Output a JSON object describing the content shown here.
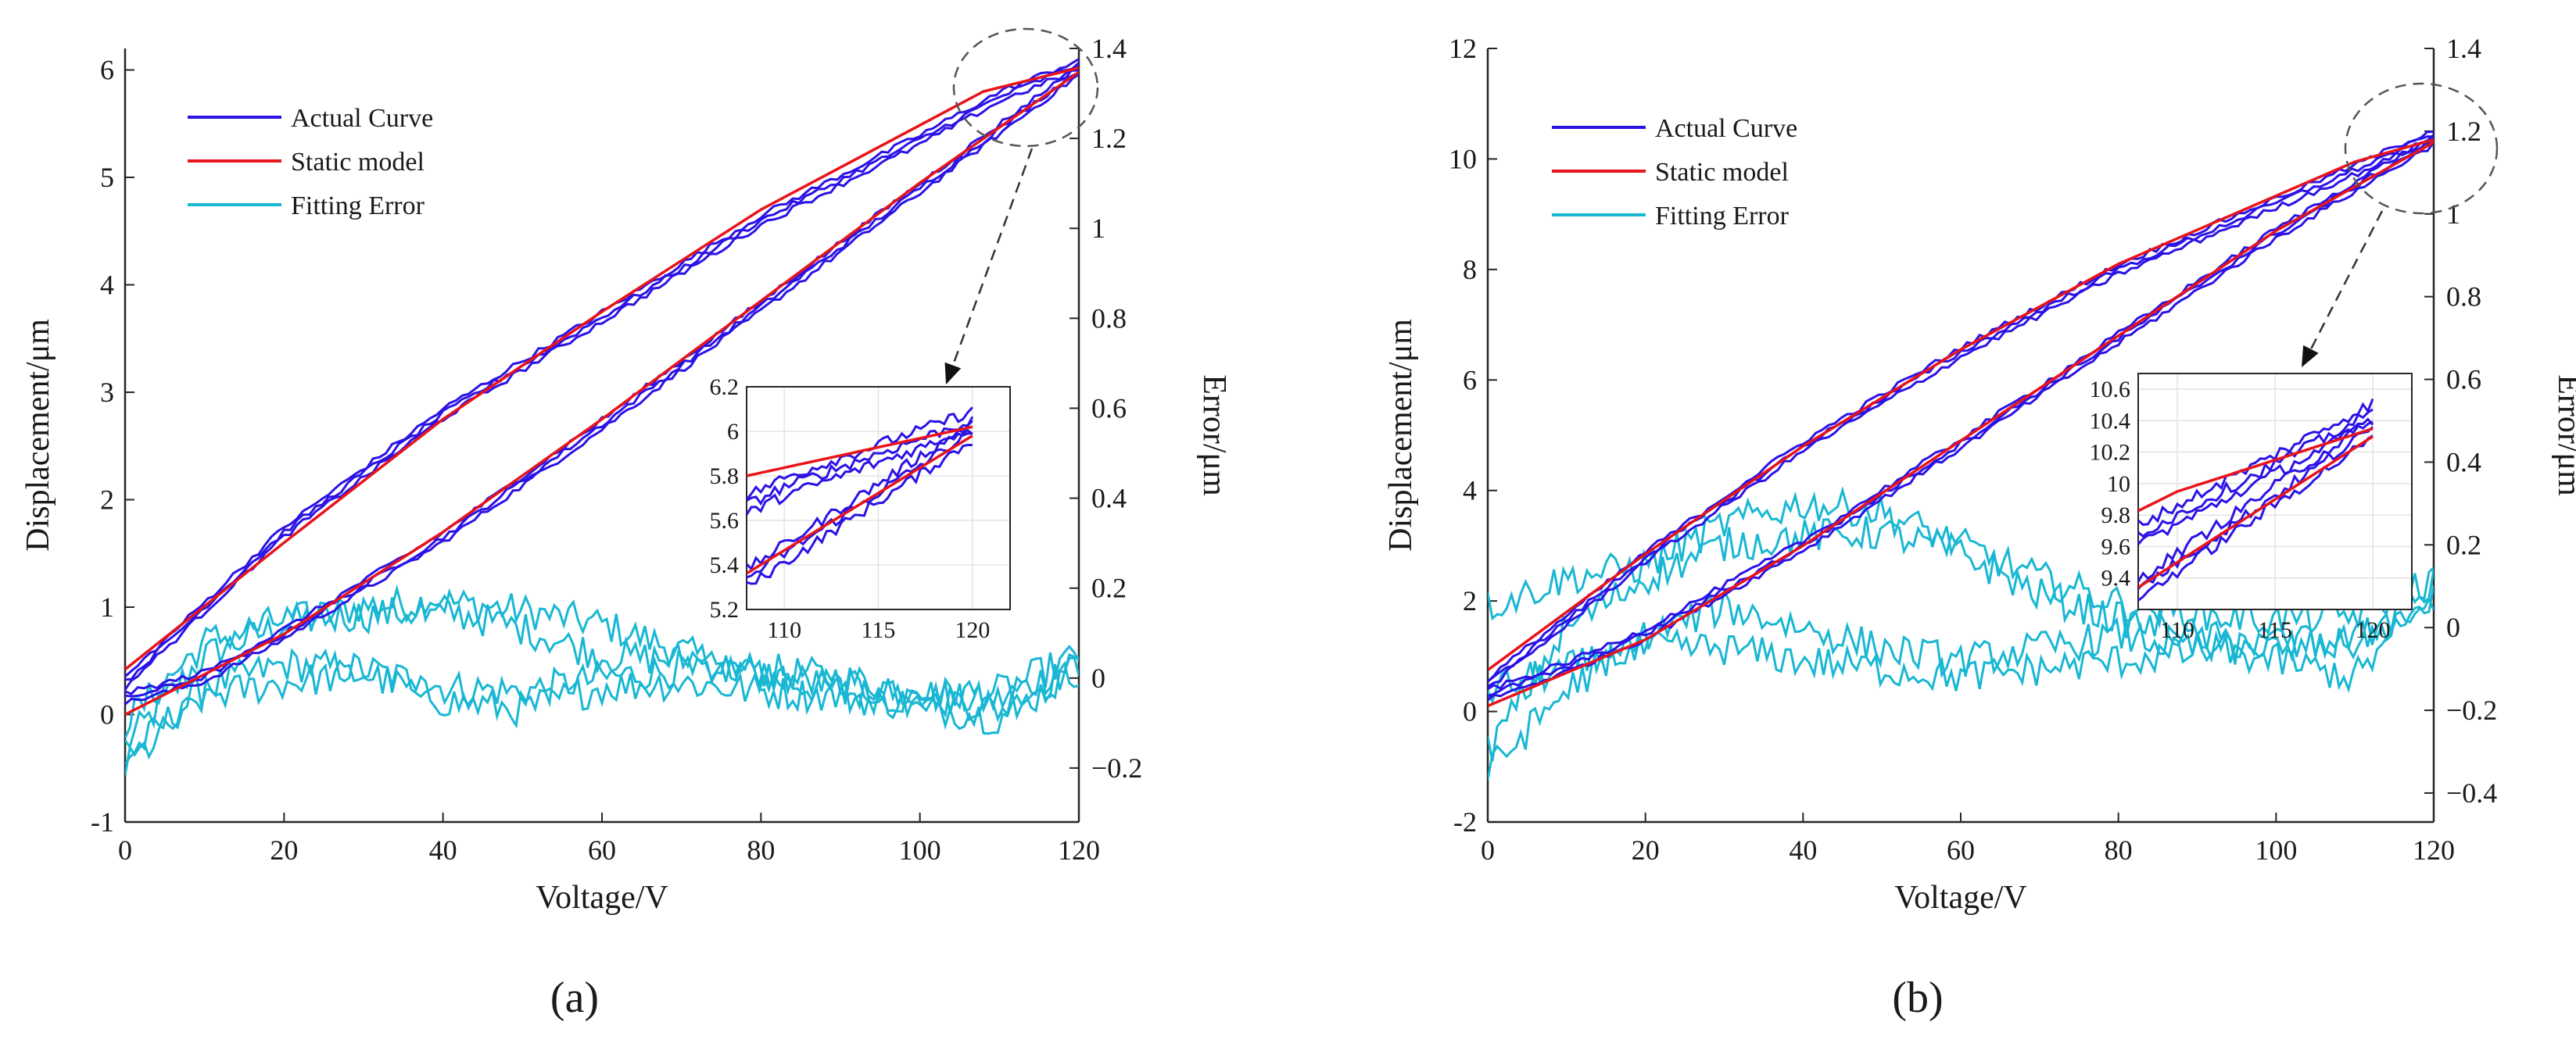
{
  "colors": {
    "actual": "#2b13e6",
    "static": "#e8141b",
    "error": "#19b7d3",
    "axis": "#262626",
    "grid": "#e3e3e3"
  },
  "chart_data": [
    {
      "type": "line",
      "panel_label": "(a)",
      "xlabel": "Voltage/V",
      "ylabel": "Displacement/μm",
      "y2label": "Error/μm",
      "xlim": [
        0,
        120
      ],
      "ylim": [
        -1,
        6.2
      ],
      "y2lim": [
        -0.32,
        1.4
      ],
      "xticks": [
        0,
        20,
        40,
        60,
        80,
        100,
        120
      ],
      "yticks": [
        -1,
        0,
        1,
        2,
        3,
        4,
        5,
        6
      ],
      "y2ticks": [
        -0.2,
        0,
        0.2,
        0.4,
        0.6,
        0.8,
        1,
        1.2,
        1.4
      ],
      "y2ticklabels": [
        "−0.2",
        "0",
        "0.2",
        "0.4",
        "0.6",
        "0.8",
        "1",
        "1.2",
        "1.4"
      ],
      "legend": [
        "Actual Curve",
        "Static model",
        "Fitting Error"
      ],
      "static_model": {
        "ascending": [
          [
            0,
            0
          ],
          [
            20,
            0.75
          ],
          [
            40,
            1.7
          ],
          [
            60,
            2.75
          ],
          [
            80,
            3.85
          ],
          [
            100,
            4.95
          ],
          [
            120,
            5.98
          ]
        ],
        "descending": [
          [
            120,
            6.02
          ],
          [
            108,
            5.8
          ],
          [
            80,
            4.7
          ],
          [
            60,
            3.75
          ],
          [
            40,
            2.75
          ],
          [
            20,
            1.6
          ],
          [
            0,
            0.42
          ]
        ]
      },
      "actual_curve": {
        "ascending": [
          [
            0,
            0.15
          ],
          [
            10,
            0.35
          ],
          [
            20,
            0.75
          ],
          [
            40,
            1.65
          ],
          [
            60,
            2.7
          ],
          [
            80,
            3.8
          ],
          [
            100,
            4.9
          ],
          [
            120,
            6.0
          ]
        ],
        "descending": [
          [
            120,
            6.05
          ],
          [
            110,
            5.75
          ],
          [
            100,
            5.35
          ],
          [
            80,
            4.6
          ],
          [
            60,
            3.7
          ],
          [
            40,
            2.8
          ],
          [
            20,
            1.7
          ],
          [
            0,
            0.3
          ]
        ]
      },
      "fitting_error": [
        [
          [
            0,
            -0.15
          ],
          [
            10,
            0.05
          ],
          [
            20,
            0.12
          ],
          [
            30,
            0.16
          ],
          [
            40,
            0.17
          ],
          [
            50,
            0.15
          ],
          [
            60,
            0.12
          ],
          [
            70,
            0.06
          ],
          [
            80,
            0.0
          ],
          [
            90,
            -0.03
          ],
          [
            100,
            -0.05
          ],
          [
            110,
            -0.05
          ],
          [
            120,
            0.04
          ]
        ],
        [
          [
            0,
            -0.18
          ],
          [
            10,
            -0.02
          ],
          [
            20,
            0.03
          ],
          [
            30,
            0.02
          ],
          [
            40,
            -0.02
          ],
          [
            50,
            -0.03
          ],
          [
            60,
            0.0
          ],
          [
            70,
            0.02
          ],
          [
            80,
            0.02
          ],
          [
            90,
            0.0
          ],
          [
            100,
            -0.03
          ],
          [
            110,
            -0.07
          ],
          [
            120,
            0.03
          ]
        ],
        [
          [
            0,
            -0.1
          ],
          [
            10,
            0.08
          ],
          [
            20,
            0.13
          ],
          [
            30,
            0.14
          ],
          [
            40,
            0.15
          ],
          [
            50,
            0.11
          ],
          [
            60,
            0.05
          ],
          [
            70,
            0.04
          ],
          [
            80,
            0.01
          ],
          [
            90,
            -0.02
          ],
          [
            100,
            -0.04
          ],
          [
            110,
            -0.03
          ],
          [
            120,
            0.05
          ]
        ],
        [
          [
            0,
            -0.2
          ],
          [
            10,
            -0.04
          ],
          [
            20,
            -0.01
          ],
          [
            30,
            0.01
          ],
          [
            40,
            -0.05
          ],
          [
            50,
            -0.07
          ],
          [
            60,
            -0.02
          ],
          [
            70,
            -0.01
          ],
          [
            80,
            -0.03
          ],
          [
            90,
            -0.04
          ],
          [
            100,
            -0.06
          ],
          [
            110,
            -0.09
          ],
          [
            120,
            0.02
          ]
        ]
      ],
      "inset": {
        "xlim": [
          108,
          122
        ],
        "ylim": [
          5.2,
          6.2
        ],
        "xticks": [
          110,
          115,
          120
        ],
        "yticks": [
          5.2,
          5.4,
          5.6,
          5.8,
          6,
          6.2
        ],
        "yticklabels": [
          "5.2",
          "5.4",
          "5.6",
          "5.8",
          "6",
          "6.2"
        ]
      }
    },
    {
      "type": "line",
      "panel_label": "(b)",
      "xlabel": "Voltage/V",
      "ylabel": "Displacement/μm",
      "y2label": "Error/μm",
      "xlim": [
        0,
        120
      ],
      "ylim": [
        -2,
        12
      ],
      "y2lim": [
        -0.47,
        1.4
      ],
      "xticks": [
        0,
        20,
        40,
        60,
        80,
        100,
        120
      ],
      "yticks": [
        -2,
        0,
        2,
        4,
        6,
        8,
        10,
        12
      ],
      "y2ticks": [
        -0.4,
        -0.2,
        0,
        0.2,
        0.4,
        0.6,
        0.8,
        1,
        1.2,
        1.4
      ],
      "y2ticklabels": [
        "−0.4",
        "−0.2",
        "0",
        "0.2",
        "0.4",
        "0.6",
        "0.8",
        "1",
        "1.2",
        "1.4"
      ],
      "legend": [
        "Actual Curve",
        "Static model",
        "Fitting Error"
      ],
      "static_model": {
        "ascending": [
          [
            0,
            0.1
          ],
          [
            20,
            1.3
          ],
          [
            40,
            3.0
          ],
          [
            60,
            4.9
          ],
          [
            80,
            6.8
          ],
          [
            100,
            8.7
          ],
          [
            120,
            10.3
          ]
        ],
        "descending": [
          [
            120,
            10.35
          ],
          [
            110,
            9.95
          ],
          [
            80,
            8.1
          ],
          [
            60,
            6.55
          ],
          [
            40,
            4.8
          ],
          [
            20,
            2.85
          ],
          [
            0,
            0.75
          ]
        ]
      },
      "actual_curve": {
        "ascending": [
          [
            0,
            0.3
          ],
          [
            10,
            0.8
          ],
          [
            20,
            1.4
          ],
          [
            40,
            3.0
          ],
          [
            60,
            4.85
          ],
          [
            80,
            6.75
          ],
          [
            100,
            8.65
          ],
          [
            120,
            10.35
          ]
        ],
        "descending": [
          [
            120,
            10.45
          ],
          [
            110,
            9.8
          ],
          [
            100,
            9.2
          ],
          [
            80,
            8.0
          ],
          [
            60,
            6.5
          ],
          [
            40,
            4.8
          ],
          [
            20,
            2.8
          ],
          [
            0,
            0.5
          ]
        ]
      },
      "fitting_error": [
        [
          [
            0,
            0.05
          ],
          [
            10,
            0.12
          ],
          [
            20,
            0.15
          ],
          [
            30,
            0.25
          ],
          [
            40,
            0.3
          ],
          [
            50,
            0.28
          ],
          [
            60,
            0.2
          ],
          [
            70,
            0.12
          ],
          [
            80,
            0.06
          ],
          [
            90,
            0.03
          ],
          [
            100,
            0.02
          ],
          [
            110,
            0.03
          ],
          [
            120,
            0.12
          ]
        ],
        [
          [
            0,
            -0.3
          ],
          [
            10,
            0.0
          ],
          [
            20,
            0.12
          ],
          [
            30,
            0.2
          ],
          [
            40,
            0.22
          ],
          [
            50,
            0.23
          ],
          [
            60,
            0.18
          ],
          [
            70,
            0.08
          ],
          [
            80,
            0.02
          ],
          [
            90,
            -0.02
          ],
          [
            100,
            -0.05
          ],
          [
            110,
            -0.04
          ],
          [
            120,
            0.1
          ]
        ],
        [
          [
            0,
            -0.15
          ],
          [
            10,
            -0.1
          ],
          [
            20,
            -0.05
          ],
          [
            30,
            -0.05
          ],
          [
            40,
            -0.08
          ],
          [
            50,
            -0.1
          ],
          [
            60,
            -0.12
          ],
          [
            70,
            -0.1
          ],
          [
            80,
            -0.08
          ],
          [
            90,
            -0.06
          ],
          [
            100,
            -0.04
          ],
          [
            110,
            -0.03
          ],
          [
            120,
            0.06
          ]
        ],
        [
          [
            0,
            -0.35
          ],
          [
            10,
            -0.15
          ],
          [
            20,
            -0.02
          ],
          [
            30,
            0.05
          ],
          [
            40,
            0.0
          ],
          [
            50,
            -0.05
          ],
          [
            60,
            -0.08
          ],
          [
            70,
            -0.05
          ],
          [
            80,
            -0.02
          ],
          [
            90,
            -0.05
          ],
          [
            100,
            -0.08
          ],
          [
            110,
            -0.12
          ],
          [
            120,
            0.08
          ]
        ]
      ],
      "inset": {
        "xlim": [
          108,
          122
        ],
        "ylim": [
          9.2,
          10.7
        ],
        "xticks": [
          110,
          115,
          120
        ],
        "yticks": [
          9.4,
          9.6,
          9.8,
          10,
          10.2,
          10.4,
          10.6
        ],
        "yticklabels": [
          "9.4",
          "9.6",
          "9.8",
          "10",
          "10.2",
          "10.4",
          "10.6"
        ]
      }
    }
  ]
}
